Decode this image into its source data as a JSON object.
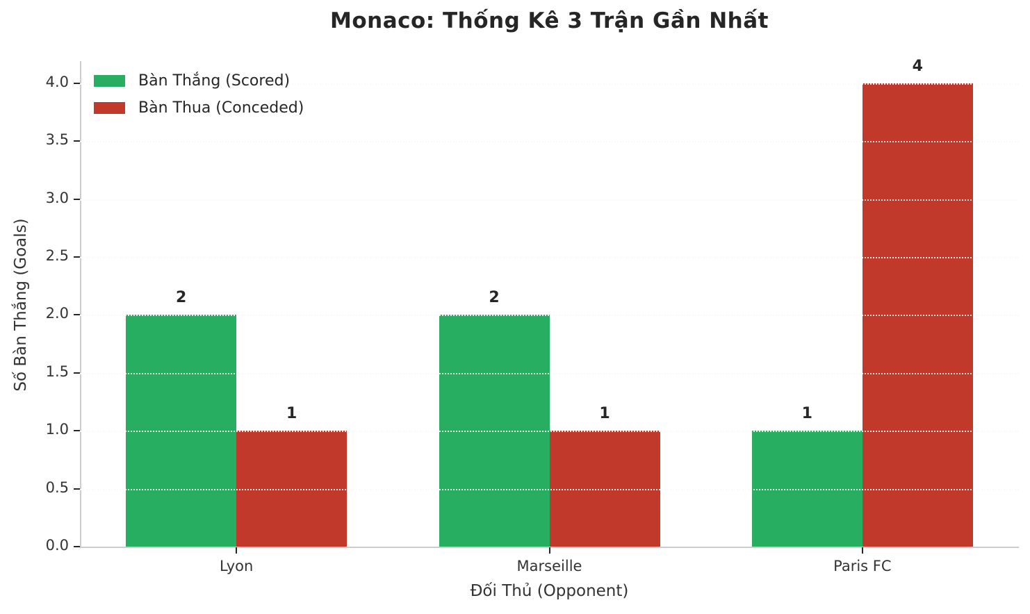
{
  "chart_data": {
    "type": "bar",
    "title": "Monaco: Thống Kê 3 Trận Gần Nhất",
    "xlabel": "Đối Thủ (Opponent)",
    "ylabel": "Số Bàn Thắng (Goals)",
    "categories": [
      "Lyon",
      "Marseille",
      "Paris FC"
    ],
    "series": [
      {
        "name": "Bàn Thắng (Scored)",
        "color": "#27ae60",
        "values": [
          2,
          2,
          1
        ]
      },
      {
        "name": "Bàn Thua (Conceded)",
        "color": "#c0392b",
        "values": [
          1,
          1,
          4
        ]
      }
    ],
    "yticks": [
      0.0,
      0.5,
      1.0,
      1.5,
      2.0,
      2.5,
      3.0,
      3.5,
      4.0
    ],
    "ytick_format_decimals": 1,
    "ylim": [
      0,
      4.19
    ],
    "grid": "horizontal-dotted",
    "legend_position": "upper-left",
    "value_labels_shown": true
  },
  "colors": {
    "text_primary": "#262626",
    "text_secondary": "#333333",
    "grid": "#dcdcdc",
    "spine": "#cccccc",
    "scored_green": "#27ae60",
    "conceded_red": "#c0392b"
  }
}
